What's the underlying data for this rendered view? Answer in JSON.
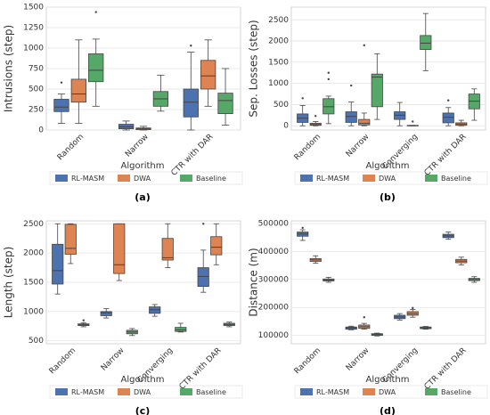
{
  "chart_data": [
    {
      "type": "box",
      "title": "(a)",
      "ylabel": "Intrusions (step)",
      "legend_title": "Algorithm",
      "categories": [
        "Random",
        "Narrow",
        "CTR with DAR"
      ],
      "ylim": [
        0,
        1500
      ],
      "yticks": [
        0,
        250,
        500,
        750,
        1000,
        1250,
        1500
      ],
      "grid": true,
      "series": [
        {
          "name": "RL-MASM",
          "color": "#4c72b0",
          "values": [
            [
              80,
              225,
              280,
              375,
              440
            ],
            [
              0,
              15,
              40,
              70,
              110
            ],
            [
              0,
              160,
              340,
              500,
              950
            ]
          ],
          "outliers": [
            [
              580
            ],
            [],
            [
              1030
            ]
          ]
        },
        {
          "name": "DWA",
          "color": "#dd8452",
          "values": [
            [
              80,
              340,
              440,
              620,
              1100
            ],
            [
              0,
              5,
              15,
              25,
              45
            ],
            [
              290,
              500,
              660,
              850,
              1100
            ]
          ],
          "outliers": [
            [],
            [],
            []
          ]
        },
        {
          "name": "Baseline",
          "color": "#55a868",
          "values": [
            [
              290,
              590,
              730,
              930,
              1110
            ],
            [
              230,
              290,
              380,
              470,
              670
            ],
            [
              60,
              200,
              360,
              450,
              750
            ]
          ],
          "outliers": [
            [
              1440
            ],
            [],
            []
          ]
        }
      ]
    },
    {
      "type": "box",
      "title": "(b)",
      "ylabel": "Sep. Losses (step)",
      "legend_title": "Algorithm",
      "categories": [
        "Random",
        "Narrow",
        "Converging",
        "CTR with DAR"
      ],
      "ylim": [
        -100,
        2800
      ],
      "yticks": [
        0,
        500,
        1000,
        1500,
        2000,
        2500
      ],
      "grid": true,
      "series": [
        {
          "name": "RL-MASM",
          "color": "#4c72b0",
          "values": [
            [
              0,
              80,
              180,
              280,
              480
            ],
            [
              0,
              80,
              220,
              330,
              560
            ],
            [
              0,
              150,
              250,
              330,
              550
            ],
            [
              0,
              70,
              200,
              300,
              430
            ]
          ],
          "outliers": [
            [
              650
            ],
            [
              950
            ],
            [],
            [
              600
            ]
          ]
        },
        {
          "name": "DWA",
          "color": "#dd8452",
          "values": [
            [
              0,
              10,
              30,
              60,
              100
            ],
            [
              0,
              20,
              60,
              150,
              300
            ],
            [
              0,
              0,
              0,
              10,
              10
            ],
            [
              0,
              10,
              40,
              70,
              130
            ]
          ],
          "outliers": [
            [
              230
            ],
            [
              1900
            ],
            [
              100
            ],
            []
          ]
        },
        {
          "name": "Baseline",
          "color": "#55a868",
          "values": [
            [
              50,
              280,
              450,
              640,
              700
            ],
            [
              150,
              450,
              1150,
              1220,
              1700
            ],
            [
              1300,
              1800,
              1950,
              2130,
              2650
            ],
            [
              130,
              400,
              580,
              750,
              870
            ]
          ],
          "outliers": [
            [
              1100,
              1250
            ],
            [],
            [],
            []
          ]
        }
      ]
    },
    {
      "type": "box",
      "title": "(c)",
      "ylabel": "Length (step)",
      "legend_title": "Algorithm",
      "categories": [
        "Random",
        "Narrow",
        "Converging",
        "CTR with DAR"
      ],
      "ylim": [
        450,
        2550
      ],
      "yticks": [
        500,
        1000,
        1500,
        2000,
        2500
      ],
      "grid": true,
      "series": [
        {
          "name": "RL-MASM",
          "color": "#4c72b0",
          "values": [
            [
              1300,
              1470,
              1700,
              2150,
              2500
            ],
            [
              890,
              930,
              980,
              1000,
              1050
            ],
            [
              920,
              970,
              1030,
              1080,
              1120
            ],
            [
              1330,
              1430,
              1600,
              1750,
              2050
            ]
          ],
          "outliers": [
            [],
            [],
            [],
            [
              2500
            ]
          ]
        },
        {
          "name": "DWA",
          "color": "#dd8452",
          "values": [
            [
              1820,
              1980,
              2080,
              2490,
              2500
            ],
            [
              1530,
              1650,
              1800,
              2500,
              2500
            ],
            [
              1750,
              1880,
              1920,
              2250,
              2500
            ],
            [
              1800,
              1970,
              2100,
              2280,
              2500
            ]
          ],
          "outliers": [
            [],
            [],
            [],
            []
          ]
        },
        {
          "name": "Baseline",
          "color": "#55a868",
          "values": [
            [
              740,
              760,
              775,
              790,
              810
            ],
            [
              590,
              620,
              650,
              680,
              710
            ],
            [
              650,
              660,
              690,
              730,
              800
            ],
            [
              740,
              760,
              780,
              800,
              820
            ]
          ],
          "outliers": [
            [
              850
            ],
            [],
            [],
            []
          ]
        }
      ]
    },
    {
      "type": "box",
      "title": "(d)",
      "ylabel": "Distance (m)",
      "legend_title": "Algorithm",
      "categories": [
        "Random",
        "Narrow",
        "Converging",
        "CTR with DAR"
      ],
      "ylim": [
        70000,
        510000
      ],
      "yticks": [
        100000,
        200000,
        300000,
        400000,
        500000
      ],
      "grid": true,
      "series": [
        {
          "name": "RL-MASM",
          "color": "#4c72b0",
          "values": [
            [
              440000,
              455000,
              463000,
              470000,
              478000
            ],
            [
              120000,
              122000,
              127000,
              130000,
              133000
            ],
            [
              155000,
              160000,
              166000,
              172000,
              178000
            ],
            [
              444000,
              450000,
              456000,
              462000,
              470000
            ]
          ],
          "outliers": [
            [
              485000
            ],
            [],
            [],
            []
          ]
        },
        {
          "name": "DWA",
          "color": "#dd8452",
          "values": [
            [
              358000,
              365000,
              370000,
              375000,
              385000
            ],
            [
              122000,
              125000,
              131000,
              137000,
              143000
            ],
            [
              165000,
              172000,
              178000,
              185000,
              193000
            ],
            [
              352000,
              360000,
              366000,
              372000,
              380000
            ]
          ],
          "outliers": [
            [],
            [
              165000
            ],
            [
              198000
            ],
            []
          ]
        },
        {
          "name": "Baseline",
          "color": "#55a868",
          "values": [
            [
              290000,
              295000,
              298000,
              302000,
              308000
            ],
            [
              98000,
              100000,
              103000,
              106000,
              108000
            ],
            [
              122000,
              124000,
              127000,
              130000,
              132000
            ],
            [
              290000,
              296000,
              300000,
              304000,
              310000
            ]
          ],
          "outliers": [
            [],
            [],
            [],
            []
          ]
        }
      ]
    }
  ]
}
